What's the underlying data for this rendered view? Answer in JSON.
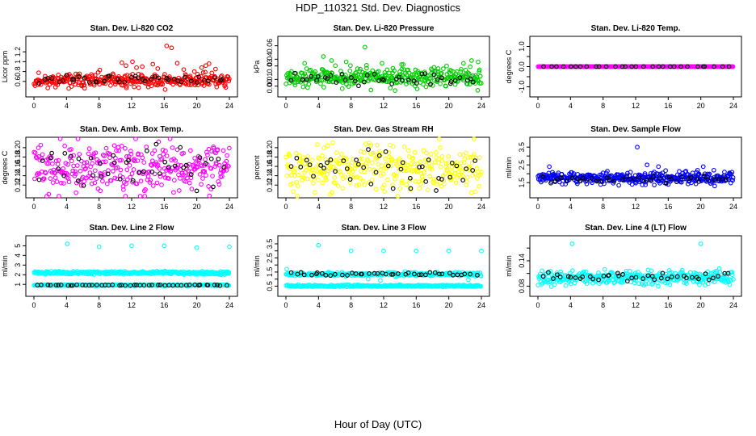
{
  "page": {
    "title": "HDP_110321  Std. Dev. Diagnostics",
    "x_axis_title": "Hour of Day (UTC)"
  },
  "colors": {
    "axis": "#000000",
    "highlight_points": "#000000"
  },
  "chart_data": [
    {
      "type": "scatter",
      "title": "Stan. Dev. Li-820 CO2",
      "ylabel": "Licor ppm",
      "xlim": [
        0,
        24
      ],
      "xticks": [
        0,
        4,
        8,
        12,
        16,
        20,
        24
      ],
      "ylim": [
        0.45,
        1.35
      ],
      "yticks": [
        0.6,
        0.8,
        1.0,
        1.2
      ],
      "color": "#ff0000",
      "series": [
        {
          "name": "main",
          "role": "band",
          "x_range": [
            0,
            24
          ],
          "center": 0.62,
          "spread": 0.07,
          "count": 340,
          "seed": 11
        },
        {
          "name": "highlight",
          "role": "band",
          "color": "#000000",
          "x_range": [
            0.5,
            23.5
          ],
          "center": 0.64,
          "spread": 0.04,
          "count": 42,
          "seed": 12
        },
        {
          "name": "outliers",
          "role": "points",
          "x": [
            10.8,
            11.3,
            12.1,
            12.6,
            13.3,
            14.6,
            15.2,
            16.3,
            16.9,
            17.6,
            18.4,
            19.7,
            20.6,
            21.1,
            21.5,
            22.3
          ],
          "y": [
            0.98,
            0.92,
            1.0,
            0.88,
            0.9,
            0.95,
            0.86,
            1.32,
            1.28,
            0.97,
            0.84,
            0.8,
            0.88,
            0.92,
            0.96,
            0.85
          ]
        }
      ]
    },
    {
      "type": "scatter",
      "title": "Stan. Dev. Li-820 Pressure",
      "ylabel": "kPa",
      "xlim": [
        0,
        24
      ],
      "xticks": [
        0,
        4,
        8,
        12,
        16,
        20,
        24
      ],
      "ylim": [
        -0.004,
        0.062
      ],
      "yticks": [
        0.0,
        0.01,
        0.03,
        0.04,
        0.06
      ],
      "ytick_labels": [
        "0.00",
        "0.01",
        "0.03",
        "0.04",
        "0.06"
      ],
      "color": "#00cc00",
      "series": [
        {
          "name": "main",
          "role": "band",
          "x_range": [
            0,
            24
          ],
          "center": 0.013,
          "spread": 0.007,
          "count": 360,
          "seed": 21
        },
        {
          "name": "highlight",
          "role": "band",
          "color": "#000000",
          "x_range": [
            0.5,
            23.5
          ],
          "center": 0.011,
          "spread": 0.004,
          "count": 42,
          "seed": 22
        },
        {
          "name": "outliers",
          "role": "points",
          "x": [
            2.3,
            4.6,
            5.6,
            7.4,
            9.7,
            9.9,
            11.8,
            14.2,
            21.8,
            22.8,
            23.6
          ],
          "y": [
            0.034,
            0.044,
            0.038,
            0.036,
            0.058,
            0.031,
            0.034,
            0.032,
            0.034,
            0.038,
            0.036
          ]
        }
      ]
    },
    {
      "type": "scatter",
      "title": "Stan. Dev. Li-820 Temp.",
      "ylabel": "degrees C",
      "xlim": [
        0,
        24
      ],
      "xticks": [
        0,
        4,
        8,
        12,
        16,
        20,
        24
      ],
      "ylim": [
        -1.1,
        1.1
      ],
      "yticks": [
        -1.0,
        -0.5,
        0.0,
        0.5,
        1.0
      ],
      "ytick_labels": [
        "-1.0",
        "",
        "0.0",
        "",
        "1.0"
      ],
      "color": "#ff00ff",
      "series": [
        {
          "name": "main",
          "role": "band",
          "x_range": [
            0,
            24
          ],
          "center": 0.0,
          "spread": 0.0,
          "count": 300,
          "seed": 31
        },
        {
          "name": "highlight",
          "role": "band",
          "color": "#000000",
          "x_range": [
            0.5,
            23.5
          ],
          "center": 0.0,
          "spread": 0.0,
          "count": 30,
          "seed": 32
        }
      ]
    },
    {
      "type": "scatter",
      "title": "Stan. Dev. Amb. Box Temp.",
      "ylabel": "degrees C",
      "xlim": [
        0,
        24
      ],
      "xticks": [
        0,
        4,
        8,
        12,
        16,
        20,
        24
      ],
      "ylim": [
        0.11,
        0.205
      ],
      "yticks": [
        0.12,
        0.14,
        0.16,
        0.18,
        0.2
      ],
      "ytick_labels": [
        "0.12",
        "0.14",
        "0.16",
        "0.18",
        "0.20"
      ],
      "color": "#ff00ff",
      "series": [
        {
          "name": "main",
          "role": "band",
          "x_range": [
            0,
            24
          ],
          "center": 0.155,
          "spread": 0.026,
          "count": 330,
          "seed": 41
        },
        {
          "name": "highlight",
          "role": "band",
          "color": "#000000",
          "x_range": [
            0.5,
            23.5
          ],
          "center": 0.157,
          "spread": 0.02,
          "count": 42,
          "seed": 42
        }
      ]
    },
    {
      "type": "scatter",
      "title": "Stan. Dev. Gas Stream RH",
      "ylabel": "percent",
      "xlim": [
        0,
        24
      ],
      "xticks": [
        0,
        4,
        8,
        12,
        16,
        20,
        24
      ],
      "ylim": [
        0.11,
        0.205
      ],
      "yticks": [
        0.12,
        0.14,
        0.16,
        0.18,
        0.2
      ],
      "ytick_labels": [
        "0.12",
        "0.14",
        "0.16",
        "0.18",
        "0.20"
      ],
      "color": "#ffff00",
      "series": [
        {
          "name": "main",
          "role": "band",
          "x_range": [
            0,
            24
          ],
          "center": 0.155,
          "spread": 0.025,
          "count": 320,
          "seed": 51
        },
        {
          "name": "highlight",
          "role": "band",
          "color": "#000000",
          "x_range": [
            0.5,
            23.5
          ],
          "center": 0.158,
          "spread": 0.02,
          "count": 42,
          "seed": 52
        }
      ]
    },
    {
      "type": "scatter",
      "title": "Stan. Dev. Sample Flow",
      "ylabel": "ml/min",
      "xlim": [
        0,
        24
      ],
      "xticks": [
        0,
        4,
        8,
        12,
        16,
        20,
        24
      ],
      "ylim": [
        1.1,
        3.6
      ],
      "yticks": [
        1.5,
        2.0,
        2.5,
        3.0,
        3.5
      ],
      "ytick_labels": [
        "1.5",
        "",
        "2.5",
        "",
        "3.5"
      ],
      "color": "#0000ff",
      "series": [
        {
          "name": "main",
          "role": "band",
          "x_range": [
            0,
            24
          ],
          "center": 1.75,
          "spread": 0.16,
          "count": 380,
          "seed": 61
        },
        {
          "name": "highlight",
          "role": "band",
          "color": "#000000",
          "x_range": [
            0.5,
            23.5
          ],
          "center": 1.7,
          "spread": 0.1,
          "count": 42,
          "seed": 62
        },
        {
          "name": "outliers",
          "role": "points",
          "x": [
            1.4,
            12.2,
            13.4,
            14.8,
            19.6,
            20.3,
            21.6,
            22.9,
            23.5
          ],
          "y": [
            2.4,
            3.5,
            2.5,
            2.4,
            2.2,
            2.4,
            2.2,
            2.1,
            2.0
          ]
        }
      ]
    },
    {
      "type": "scatter",
      "title": "Stan. Dev. Line 2 Flow",
      "ylabel": "ml/min",
      "xlim": [
        0,
        24
      ],
      "xticks": [
        0,
        4,
        8,
        12,
        16,
        20,
        24
      ],
      "ylim": [
        0.6,
        5.2
      ],
      "yticks": [
        1,
        2,
        3,
        4,
        5
      ],
      "color": "#00ffff",
      "series": [
        {
          "name": "upper",
          "role": "band",
          "x_range": [
            0,
            24
          ],
          "center": 2.2,
          "spread": 0.08,
          "count": 300,
          "seed": 71
        },
        {
          "name": "lower",
          "role": "band",
          "x_range": [
            0,
            24
          ],
          "center": 0.92,
          "spread": 0.03,
          "count": 260,
          "seed": 72
        },
        {
          "name": "highlight",
          "role": "band",
          "color": "#000000",
          "x_range": [
            0.3,
            23.7
          ],
          "center": 0.92,
          "spread": 0.02,
          "count": 48,
          "seed": 73
        },
        {
          "name": "outliers",
          "role": "points",
          "x": [
            4.1,
            8.0,
            12.0,
            16.0,
            20.0,
            24.0
          ],
          "y": [
            5.2,
            4.9,
            5.0,
            5.0,
            4.8,
            4.9
          ]
        }
      ]
    },
    {
      "type": "scatter",
      "title": "Stan. Dev. Line 3 Flow",
      "ylabel": "ml/min",
      "xlim": [
        0,
        24
      ],
      "xticks": [
        0,
        4,
        8,
        12,
        16,
        20,
        24
      ],
      "ylim": [
        0.35,
        3.5
      ],
      "yticks": [
        0.5,
        1.0,
        1.5,
        2.0,
        2.5,
        3.0,
        3.5
      ],
      "ytick_labels": [
        "0.5",
        "",
        "1.5",
        "",
        "2.5",
        "",
        "3.5"
      ],
      "color": "#00ffff",
      "series": [
        {
          "name": "upper",
          "role": "band",
          "x_range": [
            0,
            24
          ],
          "center": 1.35,
          "spread": 0.07,
          "count": 280,
          "seed": 81
        },
        {
          "name": "lower",
          "role": "band",
          "x_range": [
            0,
            24
          ],
          "center": 0.52,
          "spread": 0.03,
          "count": 260,
          "seed": 82
        },
        {
          "name": "highlight",
          "role": "band",
          "color": "#000000",
          "x_range": [
            0.5,
            23.5
          ],
          "center": 1.36,
          "spread": 0.06,
          "count": 42,
          "seed": 83
        },
        {
          "name": "outliers",
          "role": "points",
          "x": [
            0.1,
            4.0,
            8.0,
            10.1,
            11.6,
            12.0,
            16.0,
            20.0,
            22.4,
            24.0
          ],
          "y": [
            1.7,
            3.4,
            3.0,
            1.0,
            0.9,
            3.0,
            3.0,
            3.0,
            0.95,
            3.0
          ]
        }
      ]
    },
    {
      "type": "scatter",
      "title": "Stan. Dev. Line 4 (LT) Flow",
      "ylabel": "ml/min",
      "xlim": [
        0,
        24
      ],
      "xticks": [
        0,
        4,
        8,
        12,
        16,
        20,
        24
      ],
      "ylim": [
        0.075,
        0.18
      ],
      "yticks": [
        0.08,
        0.11,
        0.14,
        0.17
      ],
      "ytick_labels": [
        "0.08",
        "",
        "0.14",
        ""
      ],
      "color": "#00ffff",
      "series": [
        {
          "name": "main",
          "role": "band",
          "x_range": [
            0,
            24
          ],
          "center": 0.1,
          "spread": 0.008,
          "count": 360,
          "seed": 91
        },
        {
          "name": "highlight",
          "role": "band",
          "color": "#000000",
          "x_range": [
            0.5,
            23.5
          ],
          "center": 0.101,
          "spread": 0.006,
          "count": 42,
          "seed": 92
        },
        {
          "name": "outliers",
          "role": "points",
          "x": [
            4.2,
            20.0
          ],
          "y": [
            0.18,
            0.18
          ]
        }
      ]
    }
  ]
}
